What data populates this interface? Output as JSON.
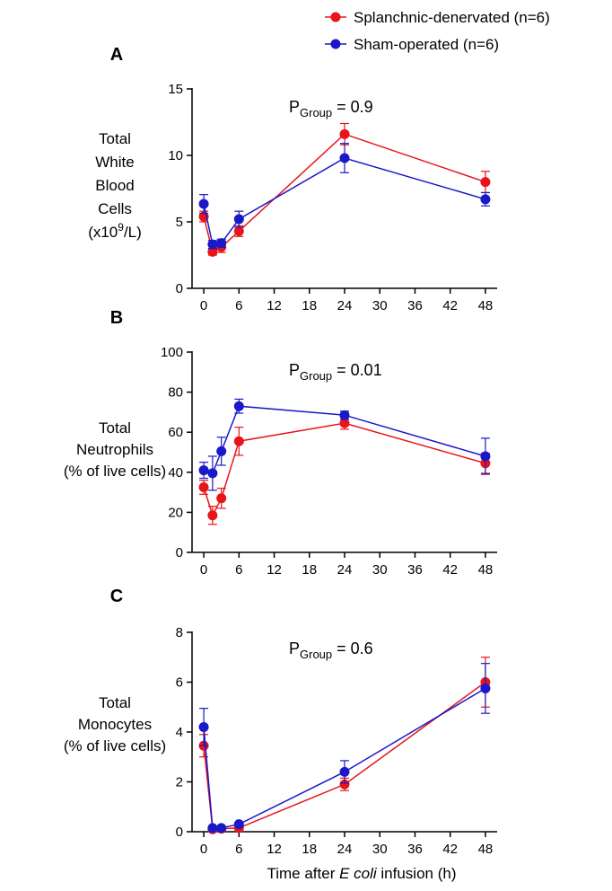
{
  "legend": {
    "entries": [
      {
        "label": "Splanchnic-denervated (n=6)",
        "color": "#e8141a"
      },
      {
        "label": "Sham-operated (n=6)",
        "color": "#1a18c8"
      }
    ]
  },
  "x_axis_title": {
    "prefix": "Time after ",
    "italic": "E coli",
    "suffix": " infusion (h)"
  },
  "chart_data": [
    {
      "type": "line",
      "panel": "A",
      "ylabel_lines": [
        "Total",
        "White",
        "Blood",
        "Cells",
        "(x10",
        "9",
        "/L)"
      ],
      "p_value": {
        "prefix": "P",
        "sub": "Group",
        "value": "= 0.9"
      },
      "x_ticks": [
        0,
        6,
        12,
        18,
        24,
        30,
        36,
        42,
        48
      ],
      "y_ticks": [
        0,
        5,
        10,
        15
      ],
      "xlim": [
        -2,
        50
      ],
      "ylim": [
        0,
        15
      ],
      "x": [
        0,
        1.5,
        3,
        6,
        24,
        48
      ],
      "series": [
        {
          "name": "Splanchnic-denervated (n=6)",
          "color": "#e8141a",
          "values": [
            5.4,
            2.75,
            3.1,
            4.3,
            11.6,
            8.0
          ],
          "errors": [
            0.4,
            0.25,
            0.4,
            0.4,
            0.8,
            0.8
          ]
        },
        {
          "name": "Sham-operated (n=6)",
          "color": "#1a18c8",
          "values": [
            6.35,
            3.3,
            3.4,
            5.2,
            9.8,
            6.7
          ],
          "errors": [
            0.7,
            0.3,
            0.3,
            0.6,
            1.1,
            0.5
          ]
        }
      ]
    },
    {
      "type": "line",
      "panel": "B",
      "ylabel_lines": [
        "Total",
        "Neutrophils",
        "(% of live cells)"
      ],
      "p_value": {
        "prefix": "P",
        "sub": "Group",
        "value": "= 0.01"
      },
      "x_ticks": [
        0,
        6,
        12,
        18,
        24,
        30,
        36,
        42,
        48
      ],
      "y_ticks": [
        0,
        20,
        40,
        60,
        80,
        100
      ],
      "xlim": [
        -2,
        50
      ],
      "ylim": [
        0,
        100
      ],
      "x": [
        0,
        1.5,
        3,
        6,
        24,
        48
      ],
      "series": [
        {
          "name": "Splanchnic-denervated (n=6)",
          "color": "#e8141a",
          "values": [
            32.5,
            18.5,
            27,
            55.5,
            64.5,
            44.5
          ],
          "errors": [
            3.5,
            4.5,
            5,
            7,
            3,
            5
          ]
        },
        {
          "name": "Sham-operated (n=6)",
          "color": "#1a18c8",
          "values": [
            41,
            39.5,
            50.5,
            73,
            68.5,
            48
          ],
          "errors": [
            4,
            8.5,
            7,
            3.5,
            2,
            9
          ]
        }
      ]
    },
    {
      "type": "line",
      "panel": "C",
      "ylabel_lines": [
        "Total",
        "Monocytes",
        "(% of live cells)"
      ],
      "p_value": {
        "prefix": "P",
        "sub": "Group",
        "value": "= 0.6"
      },
      "x_ticks": [
        0,
        6,
        12,
        18,
        24,
        30,
        36,
        42,
        48
      ],
      "y_ticks": [
        0,
        2,
        4,
        6,
        8
      ],
      "xlim": [
        -2,
        50
      ],
      "ylim": [
        0,
        8
      ],
      "x": [
        0,
        1.5,
        3,
        6,
        24,
        48
      ],
      "series": [
        {
          "name": "Splanchnic-denervated (n=6)",
          "color": "#e8141a",
          "values": [
            3.45,
            0.1,
            0.12,
            0.15,
            1.9,
            6.0
          ],
          "errors": [
            0.45,
            0.05,
            0.05,
            0.05,
            0.25,
            1.0
          ]
        },
        {
          "name": "Sham-operated (n=6)",
          "color": "#1a18c8",
          "values": [
            4.2,
            0.15,
            0.15,
            0.3,
            2.4,
            5.75
          ],
          "errors": [
            0.75,
            0.05,
            0.05,
            0.05,
            0.45,
            1.0
          ]
        }
      ]
    }
  ]
}
